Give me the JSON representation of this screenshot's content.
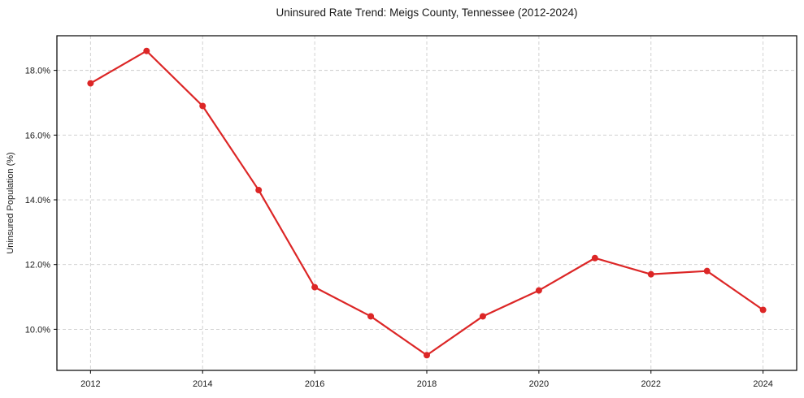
{
  "chart_data": {
    "type": "line",
    "title": "Uninsured Rate Trend: Meigs County, Tennessee (2012-2024)",
    "xlabel": "",
    "ylabel": "Uninsured Population (%)",
    "x": [
      2012,
      2013,
      2014,
      2015,
      2016,
      2017,
      2018,
      2019,
      2020,
      2021,
      2022,
      2023,
      2024
    ],
    "values": [
      17.6,
      18.6,
      16.9,
      14.3,
      11.3,
      10.4,
      9.2,
      10.4,
      11.2,
      12.2,
      11.7,
      11.8,
      10.6
    ],
    "x_tick_values": [
      2012,
      2014,
      2016,
      2018,
      2020,
      2022,
      2024
    ],
    "x_tick_labels": [
      "2012",
      "2014",
      "2016",
      "2018",
      "2020",
      "2022",
      "2024"
    ],
    "y_tick_values": [
      10,
      12,
      14,
      16,
      18
    ],
    "y_tick_labels": [
      "10.0%",
      "12.0%",
      "14.0%",
      "16.0%",
      "18.0%"
    ],
    "xlim": [
      2011.4,
      2024.6
    ],
    "ylim": [
      8.73,
      19.07
    ],
    "grid": true,
    "legend_position": "none",
    "line_color": "#dc2626",
    "grid_color": "#cccccc",
    "axis_color": "#000000",
    "text_color": "#1a1a1a",
    "marker": "circle",
    "marker_size": 4,
    "line_width": 2.2
  }
}
